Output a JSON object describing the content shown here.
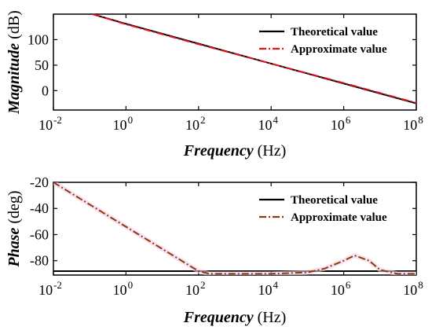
{
  "chart_data": [
    {
      "type": "line",
      "xscale": "log",
      "xlim": [
        0.01,
        100000000
      ],
      "ylim": [
        -38,
        150
      ],
      "grid": false,
      "legend_position": "top-right",
      "xlabel": {
        "emph": "Frequency",
        "unit": "(Hz)"
      },
      "ylabel": {
        "emph": "Magnitude",
        "unit": "(dB)"
      },
      "x_ticks": [
        {
          "value": 0.01,
          "base": "10",
          "exp": "-2"
        },
        {
          "value": 1,
          "base": "10",
          "exp": "0"
        },
        {
          "value": 100,
          "base": "10",
          "exp": "2"
        },
        {
          "value": 10000,
          "base": "10",
          "exp": "4"
        },
        {
          "value": 1000000,
          "base": "10",
          "exp": "6"
        },
        {
          "value": 100000000,
          "base": "10",
          "exp": "8"
        }
      ],
      "y_ticks": [
        {
          "value": 100,
          "label": "100"
        },
        {
          "value": 50,
          "label": "50"
        },
        {
          "value": 0,
          "label": "0"
        }
      ],
      "series": [
        {
          "name": "Theoretical value",
          "color": "#000000",
          "style": "solid",
          "x": [
            0.12,
            1,
            100,
            10000,
            1000000,
            100000000
          ],
          "y": [
            150,
            131,
            92,
            53,
            14,
            -25
          ]
        },
        {
          "name": "Approximate value",
          "color": "#e8101c",
          "style": "dashdot",
          "x": [
            0.12,
            1,
            100,
            10000,
            1000000,
            100000000
          ],
          "y": [
            150,
            130,
            91,
            53,
            15,
            -24
          ]
        }
      ]
    },
    {
      "type": "line",
      "xscale": "log",
      "xlim": [
        0.01,
        100000000
      ],
      "ylim": [
        -91,
        -20
      ],
      "grid": false,
      "legend_position": "top-right",
      "xlabel": {
        "emph": "Frequency",
        "unit": "(Hz)"
      },
      "ylabel": {
        "emph": "Phase",
        "unit": "(deg)"
      },
      "x_ticks": [
        {
          "value": 0.01,
          "base": "10",
          "exp": "-2"
        },
        {
          "value": 1,
          "base": "10",
          "exp": "0"
        },
        {
          "value": 100,
          "base": "10",
          "exp": "2"
        },
        {
          "value": 10000,
          "base": "10",
          "exp": "4"
        },
        {
          "value": 1000000,
          "base": "10",
          "exp": "6"
        },
        {
          "value": 100000000,
          "base": "10",
          "exp": "8"
        }
      ],
      "y_ticks": [
        {
          "value": -20,
          "label": "-20"
        },
        {
          "value": -40,
          "label": "-40"
        },
        {
          "value": -60,
          "label": "-60"
        },
        {
          "value": -80,
          "label": "-80"
        }
      ],
      "series": [
        {
          "name": "Theoretical value",
          "color": "#000000",
          "style": "solid",
          "x": [
            0.01,
            100000000
          ],
          "y": [
            -88,
            -88
          ]
        },
        {
          "name": "Approximate value",
          "color": "#8b3a0e",
          "style": "dashdot",
          "x": [
            0.01,
            0.1,
            1,
            10,
            100,
            200,
            1000,
            10000,
            100000,
            300000,
            1000000,
            2000000,
            5000000,
            10000000,
            30000000,
            100000000
          ],
          "y": [
            -20,
            -37,
            -54,
            -71,
            -88,
            -90,
            -90,
            -90,
            -89,
            -86,
            -80,
            -76,
            -80,
            -87,
            -90,
            -90
          ]
        }
      ]
    }
  ]
}
